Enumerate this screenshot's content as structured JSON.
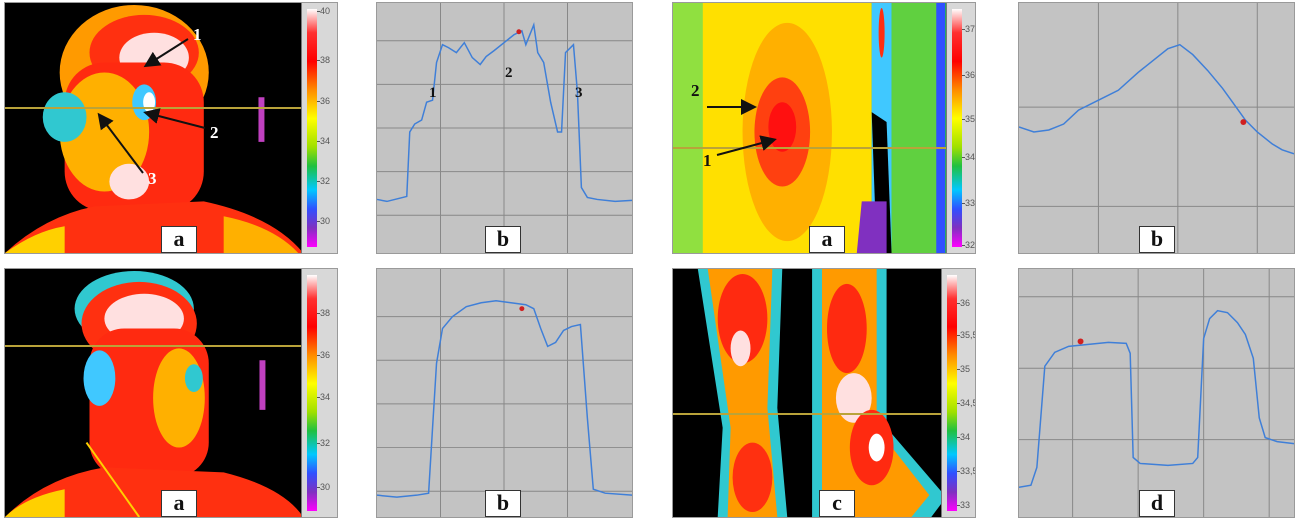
{
  "labels": {
    "a1": "a",
    "b1": "b",
    "a2": "a",
    "b2": "b",
    "a3": "a",
    "b3": "b",
    "c4": "c",
    "d4": "d"
  },
  "scales": {
    "s1": [
      "40",
      "38",
      "36",
      "34",
      "32",
      "30"
    ],
    "s2": [
      "38",
      "36",
      "34",
      "32",
      "30"
    ],
    "s3": [
      "37",
      "36",
      "35",
      "34",
      "33",
      "32"
    ],
    "s4": [
      "36",
      "35,5",
      "35",
      "34,5",
      "34",
      "33,5",
      "33"
    ]
  },
  "annotations": {
    "face1": [
      "1",
      "2",
      "3"
    ],
    "plot1": [
      "1",
      "2",
      "3"
    ],
    "torso": [
      "2",
      "1"
    ]
  },
  "colors": {
    "plot_bg": "#c3c3c3",
    "trace": "#3f7fd8",
    "marker": "#d02020",
    "cursor_line": "#b9a33a"
  }
}
